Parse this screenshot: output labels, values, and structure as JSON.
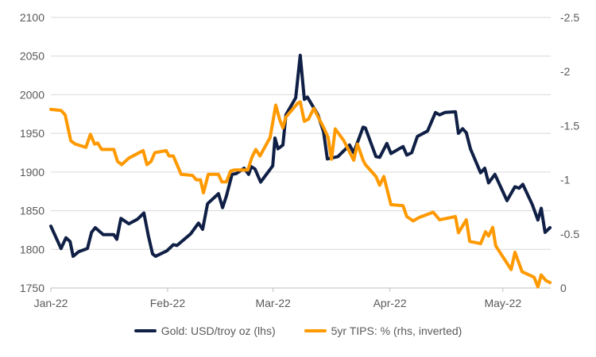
{
  "chart_data": {
    "type": "line",
    "title": "",
    "x_unit": "days since 1 Jan 2022",
    "xlim": [
      0,
      132.7
    ],
    "x_ticks": [
      {
        "label": "Jan-22",
        "x": 0
      },
      {
        "label": "Feb-22",
        "x": 31
      },
      {
        "label": "Mar-22",
        "x": 59
      },
      {
        "label": "Apr-22",
        "x": 90
      },
      {
        "label": "May-22",
        "x": 120
      }
    ],
    "y_left": {
      "min": 1750,
      "max": 2100,
      "ticks": [
        "1750",
        "1800",
        "1850",
        "1900",
        "1950",
        "2000",
        "2050",
        "2100"
      ]
    },
    "y_right": {
      "min": 0,
      "max": -2.5,
      "inverted": true,
      "ticks": [
        "0",
        "-0.5",
        "-1",
        "-1.5",
        "-2",
        "-2.5"
      ]
    },
    "grid": true,
    "legend_position": "bottom",
    "series": [
      {
        "name": "Gold: USD/troy oz (lhs)",
        "axis": "left",
        "color": "#0f1f45",
        "x": [
          0,
          2.7,
          4.0,
          5.1,
          5.9,
          7.4,
          9.7,
          10.8,
          11.8,
          13.9,
          16.7,
          17.5,
          18.6,
          20.7,
          23.0,
          24.7,
          25.9,
          27.0,
          27.8,
          30.8,
          32.5,
          33.5,
          37.1,
          39.2,
          40.3,
          41.6,
          44.5,
          45.6,
          46.6,
          48.1,
          49.2,
          51.3,
          52.5,
          53.2,
          54.2,
          55.7,
          58.9,
          59.5,
          60.3,
          61.6,
          62.4,
          65.0,
          66.2,
          67.3,
          68.1,
          70.9,
          72.4,
          73.4,
          76.2,
          79.3,
          80.4,
          82.9,
          83.5,
          86.3,
          87.3,
          89.2,
          90.3,
          93.5,
          94.5,
          95.8,
          97.3,
          100,
          102.1,
          103.2,
          104.6,
          107.4,
          108.2,
          109.3,
          110.3,
          111.4,
          114.1,
          115.2,
          116.2,
          117.9,
          121.1,
          123.2,
          124.3,
          125.3,
          127.8,
          129.3,
          130.2,
          131.2,
          132.5
        ],
        "y": [
          1830,
          1801,
          1815,
          1810,
          1791,
          1797,
          1801,
          1822,
          1828,
          1819,
          1819,
          1813,
          1840,
          1833,
          1839,
          1847,
          1817,
          1794,
          1791,
          1798,
          1806,
          1805,
          1820,
          1834,
          1826,
          1859,
          1872,
          1854,
          1869,
          1897,
          1898,
          1905,
          1897,
          1907,
          1904,
          1887,
          1908,
          1944,
          1930,
          1935,
          1974,
          1996,
          2051,
          1994,
          1997,
          1974,
          1952,
          1917,
          1920,
          1935,
          1925,
          1958,
          1957,
          1920,
          1919,
          1937,
          1924,
          1933,
          1922,
          1925,
          1946,
          1953,
          1977,
          1974,
          1977,
          1978,
          1950,
          1956,
          1951,
          1930,
          1899,
          1905,
          1886,
          1897,
          1863,
          1881,
          1879,
          1884,
          1858,
          1838,
          1853,
          1822,
          1828
        ]
      },
      {
        "name": "5yr TIPS: % (rhs, inverted)",
        "axis": "right",
        "color": "#ff9900",
        "x": [
          0,
          2.7,
          3.8,
          5.3,
          6.5,
          9.3,
          10.5,
          11.6,
          12.4,
          13.5,
          16.7,
          17.7,
          18.8,
          20.7,
          24.5,
          25.5,
          26.6,
          27.6,
          30.6,
          31.4,
          32.5,
          34.6,
          37.6,
          38.6,
          39.7,
          40.5,
          41.8,
          44.5,
          45.4,
          46.6,
          47.7,
          48.7,
          52.3,
          53.4,
          54.4,
          55.5,
          58.2,
          59.7,
          60.8,
          61.6,
          62.4,
          65.6,
          66.2,
          67.3,
          68.4,
          69.8,
          72.6,
          73.6,
          74.5,
          75.5,
          77.8,
          80.4,
          81.4,
          82.9,
          83.5,
          86.3,
          87.3,
          88.4,
          90.3,
          93.5,
          94.5,
          96.2,
          97.7,
          101.5,
          103.2,
          107.4,
          108.2,
          110.3,
          111.2,
          114.1,
          115.4,
          116.2,
          117.3,
          118.1,
          122.2,
          123.2,
          125.1,
          128.3,
          129.3,
          130.2,
          131.4,
          132.5
        ],
        "y": [
          -1.65,
          -1.64,
          -1.6,
          -1.36,
          -1.33,
          -1.3,
          -1.42,
          -1.33,
          -1.34,
          -1.28,
          -1.28,
          -1.17,
          -1.14,
          -1.2,
          -1.27,
          -1.14,
          -1.17,
          -1.25,
          -1.27,
          -1.22,
          -1.22,
          -1.05,
          -1.04,
          -1.0,
          -1.0,
          -0.88,
          -1.05,
          -1.05,
          -0.98,
          -0.98,
          -1.08,
          -1.09,
          -1.09,
          -1.21,
          -1.28,
          -1.22,
          -1.39,
          -1.69,
          -1.55,
          -1.48,
          -1.58,
          -1.71,
          -1.72,
          -1.54,
          -1.56,
          -1.66,
          -1.47,
          -1.39,
          -1.19,
          -1.47,
          -1.36,
          -1.18,
          -1.33,
          -1.18,
          -1.14,
          -1.03,
          -0.95,
          -1.03,
          -0.77,
          -0.76,
          -0.66,
          -0.62,
          -0.65,
          -0.7,
          -0.63,
          -0.66,
          -0.51,
          -0.63,
          -0.43,
          -0.41,
          -0.52,
          -0.48,
          -0.56,
          -0.39,
          -0.17,
          -0.33,
          -0.15,
          -0.1,
          -0.01,
          -0.12,
          -0.07,
          -0.05
        ]
      }
    ]
  }
}
